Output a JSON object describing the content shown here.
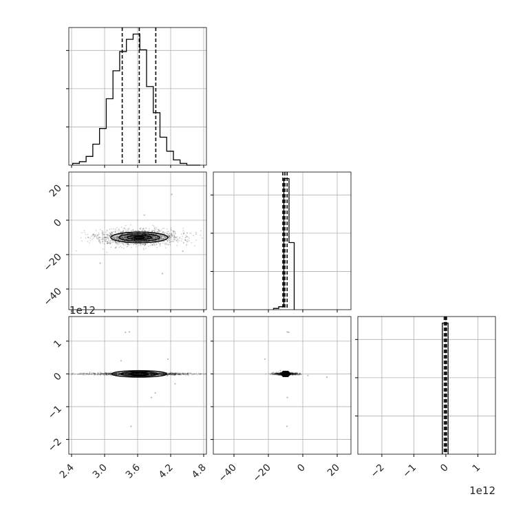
{
  "chart_data": {
    "type": "corner",
    "grid": true,
    "line_color": "#000000",
    "grid_color": "#b0b0b0",
    "panels": {
      "hist_p1": {
        "type": "histogram",
        "xlim": [
          2.35,
          4.85
        ],
        "bin_edges": [
          2.42,
          2.542,
          2.664,
          2.786,
          2.908,
          3.03,
          3.152,
          3.274,
          3.396,
          3.518,
          3.64,
          3.762,
          3.884,
          4.006,
          4.128,
          4.25,
          4.372,
          4.494,
          4.616,
          4.738
        ],
        "counts": [
          1,
          2,
          5,
          12,
          21,
          38,
          54,
          65,
          72,
          75,
          66,
          45,
          30,
          16,
          8,
          3,
          1,
          0,
          0
        ],
        "quantiles": [
          3.32,
          3.63,
          3.93
        ]
      },
      "hist_p2": {
        "type": "histogram",
        "xlim": [
          -52,
          28
        ],
        "bin_edges": [
          -17,
          -14,
          -11,
          -8,
          -5
        ],
        "counts": [
          8,
          19,
          840,
          430
        ],
        "quantiles": [
          -11.6,
          -10.4,
          -9.1
        ]
      },
      "hist_p3": {
        "type": "histogram",
        "xlim": [
          -2.75,
          1.55
        ],
        "bin_edges": [
          -0.11,
          0.07
        ],
        "counts": [
          1
        ],
        "quantiles": [
          -0.05,
          -0.01,
          0.02
        ]
      },
      "scatter_p1_p2": {
        "type": "scatter",
        "center": [
          3.63,
          -10.0
        ],
        "spread": [
          0.37,
          2.3
        ],
        "n_points": 1500,
        "outliers": [
          [
            4.22,
            15
          ],
          [
            3.72,
            3
          ],
          [
            4.05,
            -31
          ],
          [
            2.92,
            -25
          ],
          [
            4.42,
            -18
          ],
          [
            3.2,
            -16
          ]
        ]
      },
      "scatter_p1_p3": {
        "type": "scatter",
        "center": [
          3.63,
          0.0
        ],
        "spread": [
          0.37,
          0.02
        ],
        "n_points": 1200,
        "outliers": [
          [
            3.45,
            1.28
          ],
          [
            3.38,
            1.27
          ],
          [
            3.48,
            -1.6
          ],
          [
            4.15,
            0.45
          ],
          [
            4.28,
            -0.3
          ],
          [
            3.92,
            -0.58
          ],
          [
            3.85,
            -0.72
          ],
          [
            3.3,
            0.4
          ]
        ]
      },
      "scatter_p2_p3": {
        "type": "scatter",
        "center": [
          -10.0,
          0.0
        ],
        "spread": [
          2.3,
          0.02
        ],
        "n_points": 600,
        "outliers": [
          [
            -9,
            1.28
          ],
          [
            -8.2,
            1.27
          ],
          [
            -9,
            -0.72
          ],
          [
            -9.2,
            -1.6
          ],
          [
            -22,
            0.45
          ],
          [
            3,
            -0.05
          ],
          [
            14,
            -0.1
          ],
          [
            -13,
            0.1
          ]
        ]
      }
    },
    "axes": {
      "p1": {
        "lim": [
          2.35,
          4.85
        ],
        "ticks": [
          2.4,
          3.0,
          3.6,
          4.2,
          4.8
        ],
        "tick_labels": [
          "2.4",
          "3.0",
          "3.6",
          "4.2",
          "4.8"
        ]
      },
      "p2": {
        "lim": [
          -52,
          28
        ],
        "ticks": [
          -40,
          -20,
          0,
          20
        ],
        "tick_labels": [
          "−40",
          "−20",
          "0",
          "20"
        ]
      },
      "p3": {
        "lim": [
          -2.45,
          1.75
        ],
        "ticks": [
          -2,
          -1,
          0,
          1
        ],
        "tick_labels": [
          "−2",
          "−1",
          "0",
          "1"
        ]
      },
      "p3_x": {
        "lim": [
          -2.75,
          1.55
        ],
        "ticks": [
          -2,
          -1,
          0,
          1
        ],
        "tick_labels": [
          "−2",
          "−1",
          "0",
          "1"
        ]
      }
    },
    "offset_labels": {
      "p3_y": "1e12",
      "p3_x": "1e12"
    }
  }
}
